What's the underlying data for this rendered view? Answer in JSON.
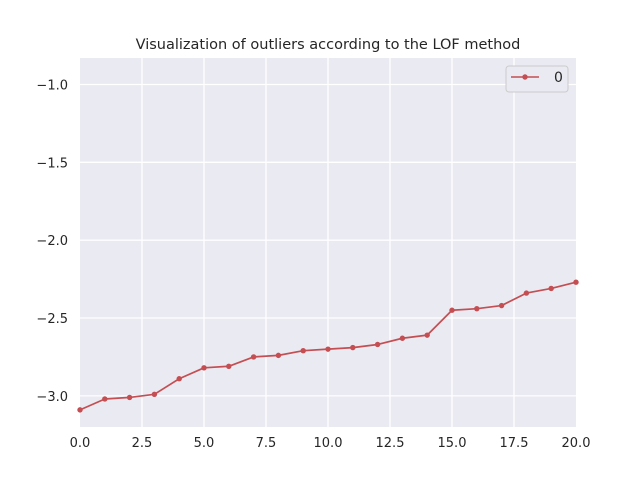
{
  "chart_data": {
    "type": "line",
    "title": "Visualization of outliers according to the LOF method",
    "xlabel": "",
    "ylabel": "",
    "xlim": [
      0,
      20
    ],
    "ylim": [
      -3.2,
      -0.83
    ],
    "xticks": [
      0.0,
      2.5,
      5.0,
      7.5,
      10.0,
      12.5,
      15.0,
      17.5,
      20.0
    ],
    "xtick_labels": [
      "0.0",
      "2.5",
      "5.0",
      "7.5",
      "10.0",
      "12.5",
      "15.0",
      "17.5",
      "20.0"
    ],
    "yticks": [
      -1.0,
      -1.5,
      -2.0,
      -2.5,
      -3.0
    ],
    "ytick_labels": [
      "−1.0",
      "−1.5",
      "−2.0",
      "−2.5",
      "−3.0"
    ],
    "grid": true,
    "legend_position": "top-right",
    "series": [
      {
        "name": "0",
        "color": "#c44e52",
        "x": [
          0,
          1,
          2,
          3,
          4,
          5,
          6,
          7,
          8,
          9,
          10,
          11,
          12,
          13,
          14,
          15,
          16,
          17,
          18,
          19,
          20
        ],
        "values": [
          -3.09,
          -3.02,
          -3.01,
          -2.99,
          -2.89,
          -2.82,
          -2.81,
          -2.75,
          -2.74,
          -2.71,
          -2.7,
          -2.69,
          -2.67,
          -2.63,
          -2.61,
          -2.45,
          -2.44,
          -2.42,
          -2.34,
          -2.31,
          -2.27
        ]
      }
    ],
    "colors": {
      "background": "#eaeaf2",
      "grid": "#ffffff",
      "text": "#262626"
    }
  }
}
